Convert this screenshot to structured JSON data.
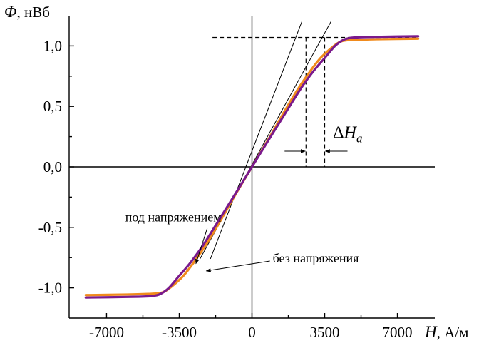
{
  "chart_data": {
    "type": "line",
    "xlabel": "H",
    "xlabel_unit": ", А/м",
    "ylabel": "Φ",
    "ylabel_unit": ", нВб",
    "xlim": [
      -8800,
      8800
    ],
    "ylim": [
      -1.25,
      1.25
    ],
    "x_ticks": [
      -7000,
      -3500,
      0,
      3500,
      7000
    ],
    "x_tick_labels": [
      "-7000",
      "-3500",
      "0",
      "3500",
      "7000"
    ],
    "y_ticks": [
      -1.0,
      -0.5,
      0.0,
      0.5,
      1.0
    ],
    "y_tick_labels": [
      "-1,0",
      "-0,5",
      "0,0",
      "0,5",
      "1,0"
    ],
    "series": [
      {
        "name": "под напряжением",
        "color": "#f08a1c",
        "x": [
          -8000,
          -6000,
          -5000,
          -4500,
          -4200,
          -3800,
          -3300,
          -2800,
          -2200,
          -1500,
          -800,
          0,
          800,
          1500,
          2200,
          2800,
          3300,
          3800,
          4200,
          4500,
          5000,
          6000,
          8000
        ],
        "y": [
          -1.06,
          -1.055,
          -1.05,
          -1.045,
          -1.03,
          -0.98,
          -0.9,
          -0.79,
          -0.64,
          -0.44,
          -0.23,
          0.0,
          0.23,
          0.44,
          0.64,
          0.79,
          0.9,
          0.98,
          1.03,
          1.045,
          1.05,
          1.055,
          1.06
        ]
      },
      {
        "name": "без напряжения",
        "color": "#7a1a8c",
        "x": [
          -8000,
          -6000,
          -5000,
          -4700,
          -4400,
          -4000,
          -3500,
          -3000,
          -2400,
          -1700,
          -900,
          0,
          900,
          1700,
          2400,
          3000,
          3500,
          4000,
          4400,
          4700,
          5000,
          6000,
          8000
        ],
        "y": [
          -1.08,
          -1.075,
          -1.07,
          -1.065,
          -1.05,
          -1.0,
          -0.9,
          -0.8,
          -0.66,
          -0.47,
          -0.25,
          0.0,
          0.25,
          0.47,
          0.66,
          0.8,
          0.9,
          1.0,
          1.05,
          1.065,
          1.07,
          1.075,
          1.08
        ]
      }
    ],
    "tangent_lines": [
      {
        "x": [
          -2000,
          2400
        ],
        "y": [
          -0.76,
          1.2
        ]
      },
      {
        "x": [
          -2500,
          3800
        ],
        "y": [
          -0.76,
          1.2
        ]
      }
    ],
    "dashed_lines": [
      {
        "x": [
          -1900,
          8000
        ],
        "y": [
          1.07,
          1.07
        ]
      },
      {
        "x": [
          2600,
          2600
        ],
        "y": [
          1.07,
          0.0
        ]
      },
      {
        "x": [
          3500,
          3500
        ],
        "y": [
          1.07,
          0.0
        ]
      }
    ],
    "annotations": [
      {
        "text": "под напряжением",
        "x": -6100,
        "y": -0.45,
        "arrow_to": [
          -2700,
          -0.8
        ]
      },
      {
        "text": "без напряжения",
        "x": 1000,
        "y": -0.79,
        "arrow_to": [
          -2200,
          -0.86
        ]
      },
      {
        "text": "ΔH",
        "subscript": "a",
        "x": 3900,
        "y": 0.24,
        "bracket_x": [
          2600,
          3500
        ],
        "bracket_y": 0.13
      }
    ]
  }
}
